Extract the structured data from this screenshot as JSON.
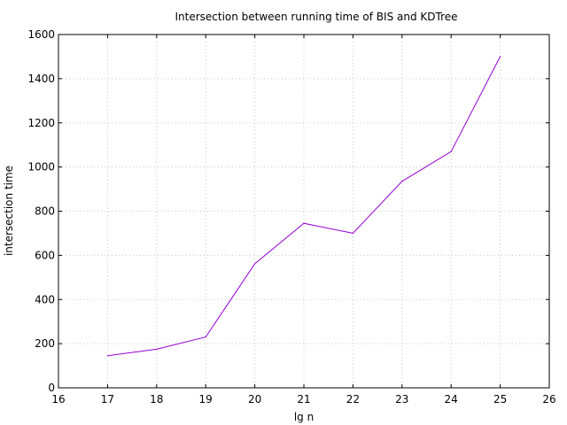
{
  "chart_data": {
    "type": "line",
    "title": "Intersection between running time of BIS and KDTree",
    "xlabel": "lg n",
    "ylabel": "intersection time",
    "xlim": [
      16,
      26
    ],
    "ylim": [
      0,
      1600
    ],
    "xticks": [
      "16",
      "17",
      "18",
      "19",
      "20",
      "21",
      "22",
      "23",
      "24",
      "25",
      "26"
    ],
    "yticks": [
      "0",
      "200",
      "400",
      "600",
      "800",
      "1000",
      "1200",
      "1400",
      "1600"
    ],
    "grid": true,
    "line_color": "#9400d3",
    "x": [
      17,
      18,
      19,
      20,
      21,
      22,
      23,
      24,
      25
    ],
    "y": [
      145,
      175,
      230,
      562,
      745,
      700,
      935,
      1070,
      1500
    ]
  }
}
